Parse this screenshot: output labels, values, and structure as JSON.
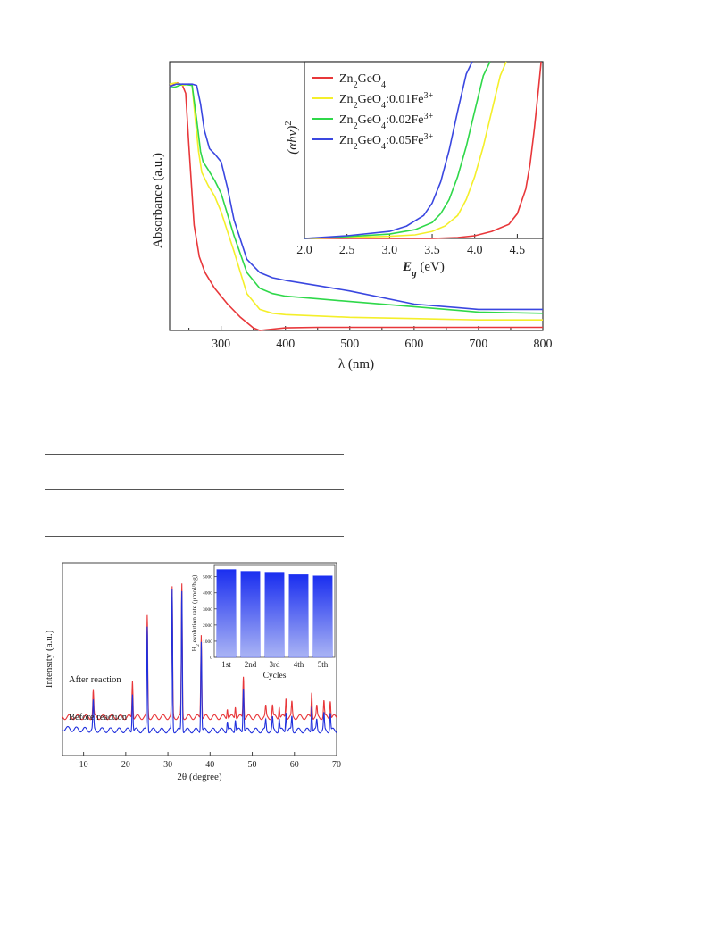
{
  "chart_data": [
    {
      "type": "line",
      "title": "",
      "xlabel": "λ (nm)",
      "ylabel": "Absorbance (a.u.)",
      "xlim": [
        220,
        800
      ],
      "ylim": [
        0,
        1
      ],
      "xticks": [
        300,
        400,
        500,
        600,
        700,
        800
      ],
      "legend_position": "inside inset, top-left",
      "series": [
        {
          "name": "Zn2GeO4",
          "color": "#e8373a",
          "x": [
            220,
            232,
            240,
            245,
            250,
            258,
            266,
            275,
            290,
            310,
            330,
            350,
            360,
            380,
            400,
            450,
            500,
            600,
            700,
            800
          ],
          "y": [
            0.925,
            0.94,
            0.93,
            0.9,
            0.7,
            0.4,
            0.28,
            0.22,
            0.16,
            0.1,
            0.05,
            0.01,
            0.0,
            0.005,
            0.01,
            0.012,
            0.012,
            0.012,
            0.012,
            0.012
          ]
        },
        {
          "name": "Zn2GeO4:0.01Fe3+",
          "color": "#f4ef2a",
          "x": [
            220,
            230,
            240,
            250,
            255,
            260,
            265,
            270,
            280,
            290,
            300,
            320,
            340,
            360,
            380,
            400,
            450,
            500,
            600,
            700,
            800
          ],
          "y": [
            0.935,
            0.94,
            0.93,
            0.935,
            0.93,
            0.8,
            0.68,
            0.6,
            0.55,
            0.51,
            0.45,
            0.3,
            0.14,
            0.08,
            0.065,
            0.06,
            0.055,
            0.05,
            0.045,
            0.04,
            0.04
          ]
        },
        {
          "name": "Zn2GeO4:0.02Fe3+",
          "color": "#2fd84a",
          "x": [
            220,
            230,
            240,
            255,
            262,
            268,
            272,
            280,
            290,
            300,
            320,
            340,
            360,
            380,
            400,
            450,
            500,
            600,
            700,
            800
          ],
          "y": [
            0.92,
            0.925,
            0.935,
            0.93,
            0.8,
            0.68,
            0.64,
            0.61,
            0.57,
            0.52,
            0.36,
            0.22,
            0.16,
            0.14,
            0.13,
            0.12,
            0.11,
            0.09,
            0.07,
            0.065
          ]
        },
        {
          "name": "Zn2GeO4:0.05Fe3+",
          "color": "#3a47e0",
          "x": [
            220,
            230,
            240,
            255,
            262,
            268,
            274,
            282,
            290,
            300,
            310,
            320,
            340,
            360,
            380,
            400,
            450,
            500,
            600,
            700,
            800
          ],
          "y": [
            0.925,
            0.935,
            0.935,
            0.935,
            0.93,
            0.86,
            0.76,
            0.69,
            0.67,
            0.64,
            0.54,
            0.42,
            0.27,
            0.22,
            0.2,
            0.19,
            0.17,
            0.15,
            0.1,
            0.08,
            0.08
          ]
        }
      ],
      "inset": {
        "type": "line",
        "xlabel": "Eg (eV)",
        "ylabel": "(αhν)²",
        "xlim": [
          2.0,
          4.8
        ],
        "ylim": [
          0,
          1
        ],
        "xticks": [
          2.0,
          2.5,
          3.0,
          3.5,
          4.0,
          4.5
        ],
        "series": [
          {
            "name": "Zn2GeO4",
            "color": "#e8373a",
            "x": [
              2.0,
              3.0,
              3.5,
              3.8,
              4.0,
              4.2,
              4.4,
              4.5,
              4.6,
              4.65,
              4.7,
              4.75,
              4.78
            ],
            "y": [
              0.0,
              0.0,
              0.0,
              0.005,
              0.015,
              0.04,
              0.08,
              0.14,
              0.28,
              0.42,
              0.62,
              0.85,
              1.0
            ]
          },
          {
            "name": "Zn2GeO4:0.01Fe3+",
            "color": "#f4ef2a",
            "x": [
              2.0,
              2.5,
              3.0,
              3.3,
              3.5,
              3.65,
              3.8,
              3.9,
              4.0,
              4.1,
              4.2,
              4.3,
              4.37
            ],
            "y": [
              0.0,
              0.005,
              0.012,
              0.02,
              0.04,
              0.07,
              0.13,
              0.22,
              0.35,
              0.52,
              0.72,
              0.92,
              1.0
            ]
          },
          {
            "name": "Zn2GeO4:0.02Fe3+",
            "color": "#2fd84a",
            "x": [
              2.0,
              2.5,
              3.0,
              3.3,
              3.5,
              3.6,
              3.7,
              3.8,
              3.9,
              4.0,
              4.1,
              4.18
            ],
            "y": [
              0.0,
              0.01,
              0.025,
              0.05,
              0.09,
              0.14,
              0.22,
              0.35,
              0.52,
              0.72,
              0.92,
              1.0
            ]
          },
          {
            "name": "Zn2GeO4:0.05Fe3+",
            "color": "#3a47e0",
            "x": [
              2.0,
              2.5,
              3.0,
              3.2,
              3.4,
              3.5,
              3.6,
              3.7,
              3.8,
              3.9,
              3.97
            ],
            "y": [
              0.0,
              0.015,
              0.04,
              0.07,
              0.13,
              0.2,
              0.32,
              0.5,
              0.72,
              0.93,
              1.0
            ]
          }
        ]
      }
    },
    {
      "type": "line",
      "title": "",
      "xlabel": "2θ (degree)",
      "ylabel": "Intensity (a.u.)",
      "xlim": [
        5,
        70
      ],
      "xticks": [
        10,
        20,
        30,
        40,
        50,
        60,
        70
      ],
      "annotations": [
        "After reaction",
        "Before reaction"
      ],
      "series": [
        {
          "name": "After reaction",
          "color": "#e8373a",
          "offset": 0.2,
          "peaks": [
            [
              12.3,
              0.13
            ],
            [
              21.6,
              0.19
            ],
            [
              25.1,
              0.5
            ],
            [
              31.0,
              0.64
            ],
            [
              33.3,
              0.66
            ],
            [
              37.9,
              0.42
            ],
            [
              44.1,
              0.05
            ],
            [
              46.0,
              0.06
            ],
            [
              47.9,
              0.21
            ],
            [
              53.2,
              0.05
            ],
            [
              54.8,
              0.06
            ],
            [
              56.4,
              0.06
            ],
            [
              58.0,
              0.1
            ],
            [
              59.4,
              0.07
            ],
            [
              64.1,
              0.13
            ],
            [
              65.3,
              0.05
            ],
            [
              67.0,
              0.08
            ],
            [
              68.5,
              0.09
            ]
          ]
        },
        {
          "name": "Before reaction",
          "color": "#2030dd",
          "offset": 0.0,
          "peaks": [
            [
              12.3,
              0.14
            ],
            [
              21.6,
              0.19
            ],
            [
              25.1,
              0.52
            ],
            [
              31.0,
              0.7
            ],
            [
              33.3,
              0.7
            ],
            [
              37.9,
              0.45
            ],
            [
              44.1,
              0.05
            ],
            [
              46.0,
              0.06
            ],
            [
              47.9,
              0.22
            ],
            [
              53.2,
              0.05
            ],
            [
              54.8,
              0.06
            ],
            [
              56.4,
              0.06
            ],
            [
              58.0,
              0.1
            ],
            [
              59.4,
              0.07
            ],
            [
              64.1,
              0.13
            ],
            [
              65.3,
              0.05
            ],
            [
              67.0,
              0.08
            ],
            [
              68.5,
              0.09
            ]
          ]
        }
      ],
      "inset": {
        "type": "bar",
        "categories": [
          "1st",
          "2nd",
          "3rd",
          "4th",
          "5th"
        ],
        "values": [
          5450,
          5340,
          5230,
          5130,
          5060
        ],
        "xlabel": "Cycles",
        "ylabel": "H2 evolution rate (μmol/h/g)",
        "ylim": [
          0,
          5700
        ],
        "yticks": [
          0,
          1000,
          2000,
          3000,
          4000,
          5000
        ],
        "bar_color_top": "#1a2ef0",
        "bar_color_bottom": "#aab4f4"
      }
    }
  ]
}
